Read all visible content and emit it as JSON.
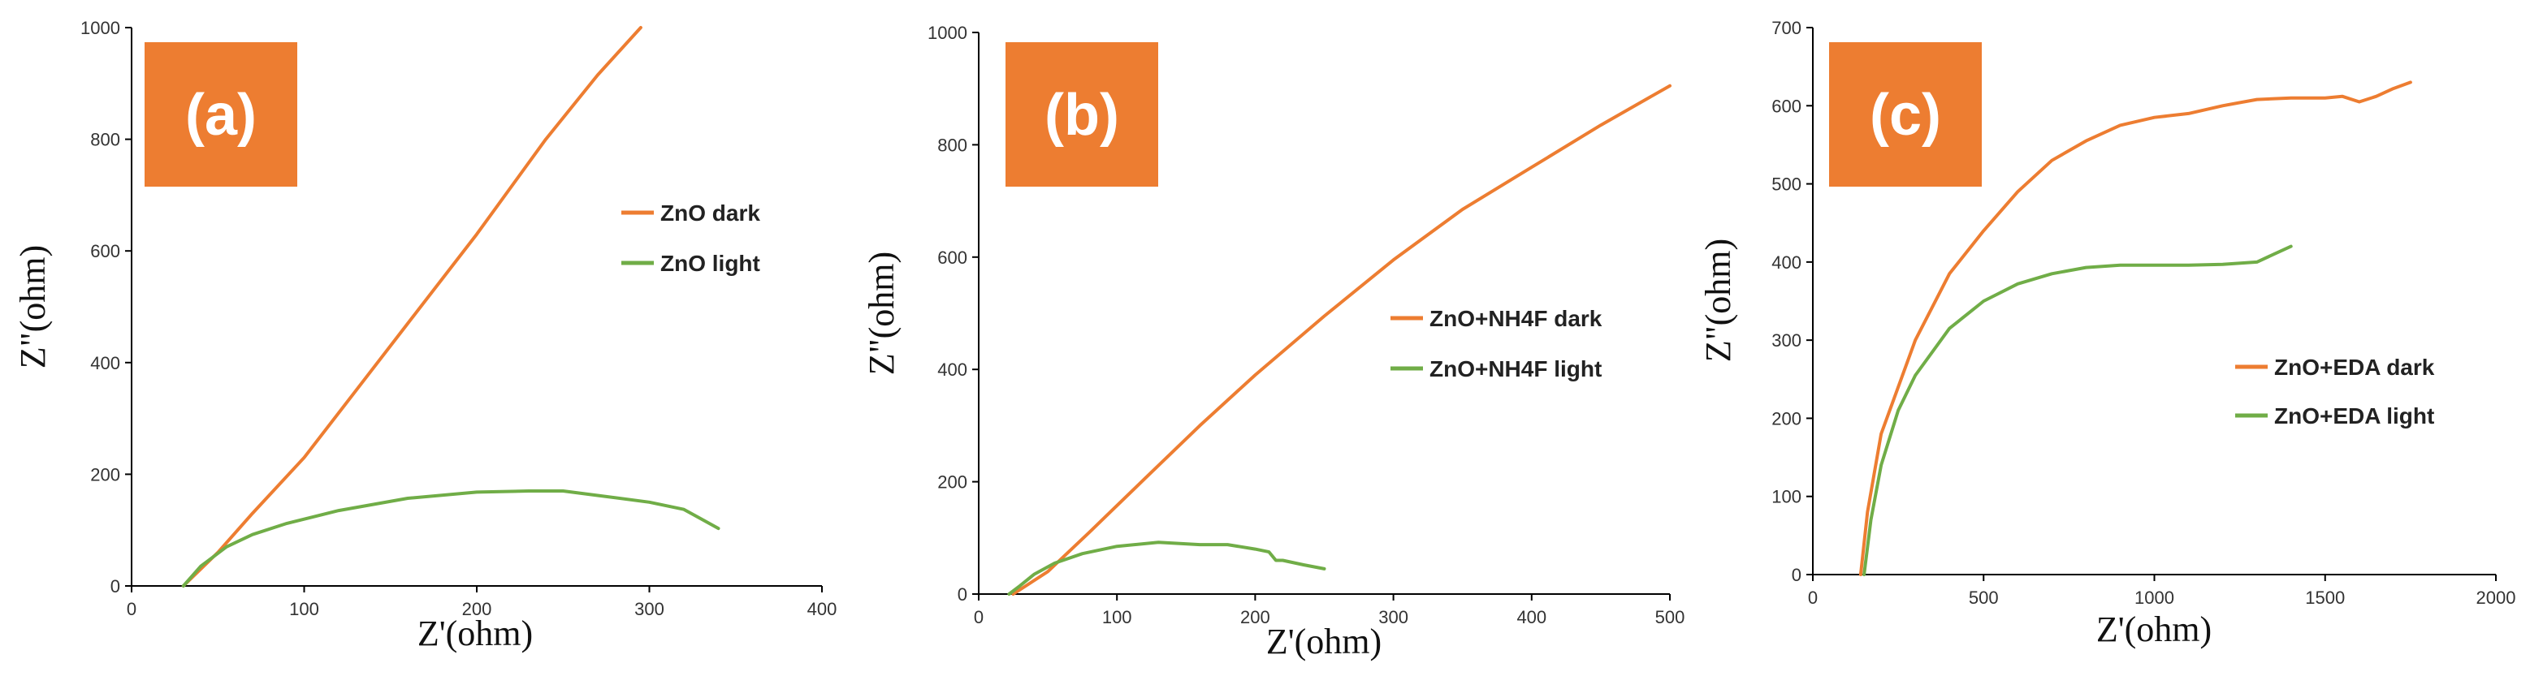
{
  "colors": {
    "dark": "#ED7D31",
    "light": "#70AD47",
    "label_box": "#ED7D31",
    "axis": "#000000"
  },
  "chart_data": [
    {
      "type": "line",
      "panel_label": "(a)",
      "xlabel": "Z'(ohm)",
      "ylabel": "Z\"(ohm)",
      "xlim": [
        0,
        400
      ],
      "ylim": [
        0,
        1000
      ],
      "xticks": [
        "0",
        "100",
        "200",
        "300",
        "400"
      ],
      "yticks": [
        "0",
        "200",
        "400",
        "600",
        "800",
        "1000"
      ],
      "legend_position": "right",
      "series": [
        {
          "name": "ZnO dark",
          "color": "#ED7D31",
          "x": [
            30,
            50,
            70,
            100,
            130,
            160,
            200,
            240,
            270,
            295
          ],
          "y": [
            0,
            60,
            130,
            230,
            350,
            470,
            630,
            800,
            915,
            1000
          ]
        },
        {
          "name": "ZnO light",
          "color": "#70AD47",
          "x": [
            30,
            40,
            55,
            70,
            90,
            120,
            160,
            200,
            230,
            250,
            270,
            300,
            320,
            340
          ],
          "y": [
            0,
            35,
            70,
            92,
            112,
            135,
            157,
            168,
            170,
            170,
            162,
            150,
            137,
            103
          ]
        }
      ]
    },
    {
      "type": "line",
      "panel_label": "(b)",
      "xlabel": "Z'(ohm)",
      "ylabel": "Z\"(ohm)",
      "xlim": [
        0,
        500
      ],
      "ylim": [
        0,
        1000
      ],
      "xticks": [
        "0",
        "100",
        "200",
        "300",
        "400",
        "500"
      ],
      "yticks": [
        "0",
        "200",
        "400",
        "600",
        "800",
        "1000"
      ],
      "legend_position": "right",
      "series": [
        {
          "name": "ZnO+NH4F dark",
          "color": "#ED7D31",
          "x": [
            25,
            50,
            80,
            120,
            160,
            200,
            250,
            300,
            350,
            400,
            450,
            500
          ],
          "y": [
            0,
            40,
            110,
            205,
            300,
            390,
            495,
            595,
            685,
            760,
            835,
            905
          ]
        },
        {
          "name": "ZnO+NH4F light",
          "color": "#70AD47",
          "x": [
            22,
            30,
            40,
            55,
            75,
            100,
            130,
            160,
            180,
            200,
            210,
            215,
            220,
            235,
            250
          ],
          "y": [
            0,
            15,
            35,
            55,
            72,
            85,
            92,
            88,
            88,
            80,
            75,
            60,
            60,
            52,
            45
          ]
        }
      ]
    },
    {
      "type": "line",
      "panel_label": "(c)",
      "xlabel": "Z'(ohm)",
      "ylabel": "Z\"(ohm)",
      "xlim": [
        0,
        2000
      ],
      "ylim": [
        0,
        700
      ],
      "xticks": [
        "0",
        "500",
        "1000",
        "1500",
        "2000"
      ],
      "yticks": [
        "0",
        "100",
        "200",
        "300",
        "400",
        "500",
        "600",
        "700"
      ],
      "legend_position": "right",
      "series": [
        {
          "name": "ZnO+EDA dark",
          "color": "#ED7D31",
          "x": [
            140,
            160,
            200,
            300,
            400,
            500,
            600,
            700,
            800,
            900,
            1000,
            1100,
            1200,
            1300,
            1400,
            1500,
            1550,
            1600,
            1650,
            1700,
            1750
          ],
          "y": [
            0,
            80,
            180,
            300,
            385,
            440,
            490,
            530,
            555,
            575,
            585,
            590,
            600,
            608,
            610,
            610,
            612,
            605,
            612,
            622,
            630
          ]
        },
        {
          "name": "ZnO+EDA light",
          "color": "#70AD47",
          "x": [
            150,
            170,
            200,
            250,
            300,
            400,
            500,
            600,
            700,
            800,
            900,
            1000,
            1100,
            1200,
            1300,
            1350,
            1400
          ],
          "y": [
            0,
            70,
            140,
            210,
            255,
            315,
            350,
            372,
            385,
            393,
            396,
            396,
            396,
            397,
            400,
            410,
            420
          ]
        }
      ]
    }
  ]
}
